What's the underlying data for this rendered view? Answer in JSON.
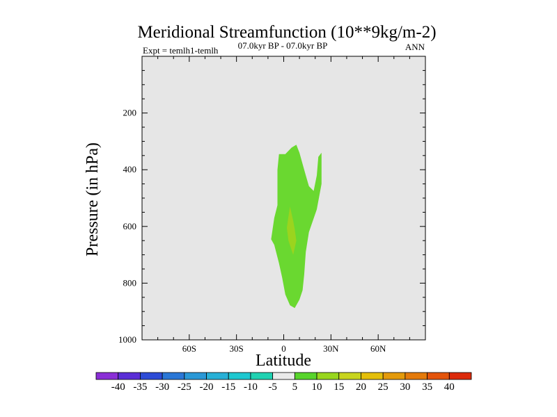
{
  "chart_data": {
    "type": "contour",
    "title": "Meridional Streamfunction (10**9kg/m-2)",
    "subtitle_left": "Expt = temlh1-temlh",
    "subtitle_center": "07.0kyr BP - 07.0kyr BP",
    "subtitle_right": "ANN",
    "xlabel": "Latitude",
    "ylabel": "Pressure (in hPa)",
    "xlim": [
      -90,
      90
    ],
    "ylim": [
      1000,
      0
    ],
    "x_ticks": [
      {
        "value": -60,
        "label": "60S"
      },
      {
        "value": -30,
        "label": "30S"
      },
      {
        "value": 0,
        "label": "0"
      },
      {
        "value": 30,
        "label": "30N"
      },
      {
        "value": 60,
        "label": "60N"
      }
    ],
    "y_ticks": [
      {
        "value": 200,
        "label": "200"
      },
      {
        "value": 400,
        "label": "400"
      },
      {
        "value": 600,
        "label": "600"
      },
      {
        "value": 800,
        "label": "800"
      },
      {
        "value": 1000,
        "label": "1000"
      }
    ],
    "background_color": "#e6e6e6",
    "contour_regions": [
      {
        "name": "5 to 10",
        "color": "#6ad830",
        "points": [
          [
            -3,
            345
          ],
          [
            1,
            345
          ],
          [
            5,
            322
          ],
          [
            8,
            312
          ],
          [
            10,
            340
          ],
          [
            12,
            380
          ],
          [
            14,
            420
          ],
          [
            16,
            458
          ],
          [
            19,
            475
          ],
          [
            21,
            420
          ],
          [
            22,
            355
          ],
          [
            24,
            340
          ],
          [
            24,
            450
          ],
          [
            21,
            540
          ],
          [
            16,
            620
          ],
          [
            14,
            690
          ],
          [
            13,
            770
          ],
          [
            12,
            825
          ],
          [
            10,
            858
          ],
          [
            7,
            888
          ],
          [
            4,
            878
          ],
          [
            1,
            840
          ],
          [
            -1,
            780
          ],
          [
            -3,
            730
          ],
          [
            -6,
            665
          ],
          [
            -8,
            645
          ],
          [
            -6,
            570
          ],
          [
            -4,
            525
          ],
          [
            -4,
            400
          ]
        ]
      },
      {
        "name": "10 to 15",
        "color": "#9bd41e",
        "points": [
          [
            4,
            530
          ],
          [
            6,
            580
          ],
          [
            7,
            610
          ],
          [
            8,
            650
          ],
          [
            6,
            700
          ],
          [
            3,
            650
          ],
          [
            2,
            605
          ],
          [
            3,
            565
          ]
        ]
      }
    ],
    "colorbar": {
      "labels": [
        "-40",
        "-35",
        "-30",
        "-25",
        "-20",
        "-15",
        "-10",
        "-5",
        "5",
        "10",
        "15",
        "20",
        "25",
        "30",
        "35",
        "40"
      ],
      "colors": [
        "#8a2ed6",
        "#5a2ed6",
        "#2d4bd6",
        "#2a77d6",
        "#2a98d6",
        "#28b0d6",
        "#1ec8d0",
        "#20d2b2",
        "#eaeaea",
        "#58d42c",
        "#98d61e",
        "#c8d41e",
        "#e4bf0a",
        "#e49a0a",
        "#e47a0a",
        "#e4540a",
        "#dc2a0a"
      ]
    }
  }
}
